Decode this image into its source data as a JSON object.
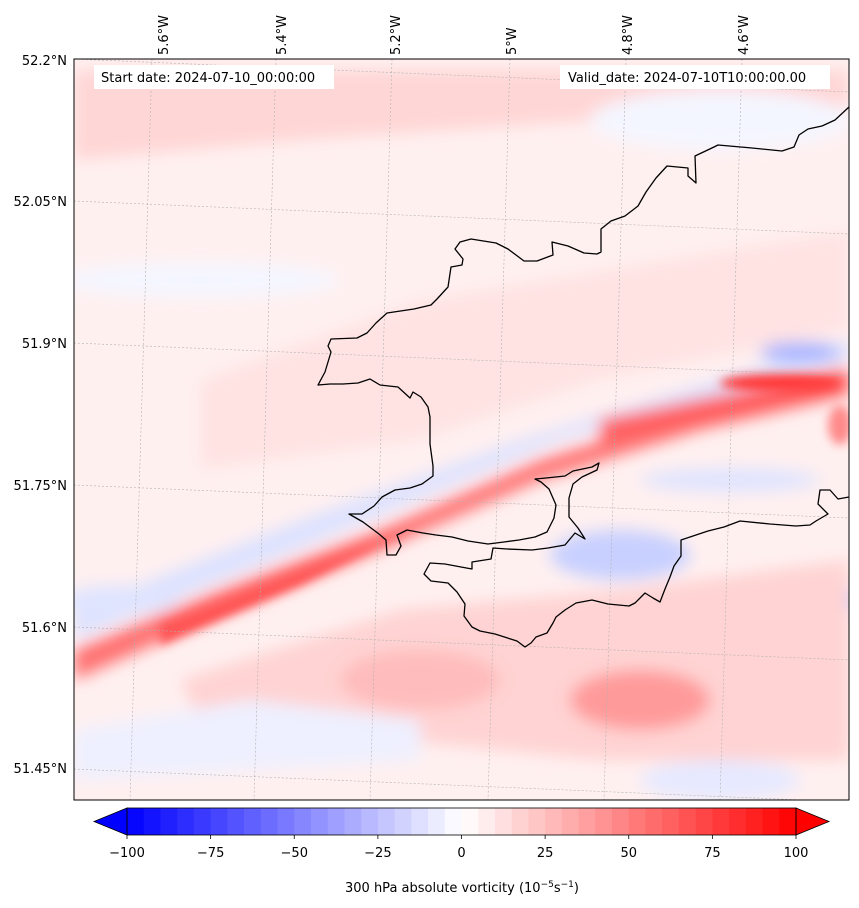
{
  "map": {
    "start_date_label": "Start date: 2024-07-10_00:00:00",
    "valid_date_label": "Valid_date: 2024-07-10T10:00:00.00",
    "lon_ticks": [
      "5.6°W",
      "5.4°W",
      "5.2°W",
      "5°W",
      "4.8°W",
      "4.6°W"
    ],
    "lat_ticks": [
      "52.2°N",
      "52.05°N",
      "51.9°N",
      "51.75°N",
      "51.6°N",
      "51.45°N"
    ],
    "field": "300 hPa absolute vorticity",
    "colors": {
      "max": "#ff0000",
      "min": "#0000ff",
      "mid": "#ffffff",
      "coast": "#000000"
    }
  },
  "colorbar": {
    "label_prefix": "300 hPa absolute vorticity (10",
    "label_exp1": "−5",
    "label_mid": "s",
    "label_exp2": "−1",
    "label_suffix": ")",
    "min": -100,
    "max": 100,
    "step": 5,
    "extend": "both",
    "tick_values": [
      -100,
      -75,
      -50,
      -25,
      0,
      25,
      50,
      75,
      100
    ],
    "tick_labels": [
      "−100",
      "−75",
      "−50",
      "−25",
      "0",
      "25",
      "50",
      "75",
      "100"
    ]
  }
}
